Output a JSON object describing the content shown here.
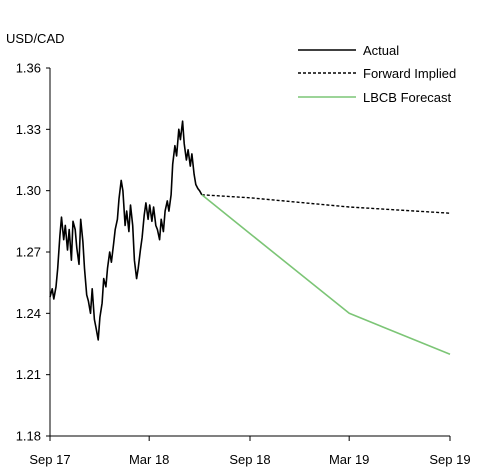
{
  "chart_data": {
    "type": "line",
    "ylabel": "USD/CAD",
    "ylim": [
      1.18,
      1.36
    ],
    "yticks": [
      "1.18",
      "1.21",
      "1.24",
      "1.27",
      "1.30",
      "1.33",
      "1.36"
    ],
    "x_tick_labels": [
      "Sep 17",
      "Mar 18",
      "Sep 18",
      "Mar 19",
      "Sep 19"
    ],
    "x_tick_dates": [
      "2017-09-01",
      "2018-03-01",
      "2018-09-01",
      "2019-03-01",
      "2019-09-01"
    ],
    "xlim": [
      "2017-09-01",
      "2019-09-01"
    ],
    "legend_position": "top-right",
    "series": [
      {
        "name": "Actual",
        "color": "#000000",
        "style": "solid",
        "points": [
          [
            "2017-09-01",
            1.248
          ],
          [
            "2017-09-05",
            1.252
          ],
          [
            "2017-09-08",
            1.247
          ],
          [
            "2017-09-12",
            1.253
          ],
          [
            "2017-09-15",
            1.262
          ],
          [
            "2017-09-19",
            1.278
          ],
          [
            "2017-09-22",
            1.287
          ],
          [
            "2017-09-26",
            1.276
          ],
          [
            "2017-09-29",
            1.283
          ],
          [
            "2017-10-03",
            1.271
          ],
          [
            "2017-10-06",
            1.281
          ],
          [
            "2017-10-10",
            1.266
          ],
          [
            "2017-10-13",
            1.285
          ],
          [
            "2017-10-17",
            1.281
          ],
          [
            "2017-10-20",
            1.272
          ],
          [
            "2017-10-24",
            1.264
          ],
          [
            "2017-10-27",
            1.286
          ],
          [
            "2017-10-31",
            1.275
          ],
          [
            "2017-11-03",
            1.262
          ],
          [
            "2017-11-07",
            1.249
          ],
          [
            "2017-11-10",
            1.246
          ],
          [
            "2017-11-14",
            1.24
          ],
          [
            "2017-11-17",
            1.252
          ],
          [
            "2017-11-21",
            1.237
          ],
          [
            "2017-11-24",
            1.233
          ],
          [
            "2017-11-28",
            1.227
          ],
          [
            "2017-12-01",
            1.238
          ],
          [
            "2017-12-05",
            1.245
          ],
          [
            "2017-12-08",
            1.257
          ],
          [
            "2017-12-12",
            1.253
          ],
          [
            "2017-12-15",
            1.262
          ],
          [
            "2017-12-19",
            1.27
          ],
          [
            "2017-12-22",
            1.265
          ],
          [
            "2017-12-26",
            1.274
          ],
          [
            "2017-12-29",
            1.281
          ],
          [
            "2018-01-02",
            1.286
          ],
          [
            "2018-01-05",
            1.296
          ],
          [
            "2018-01-09",
            1.305
          ],
          [
            "2018-01-12",
            1.3
          ],
          [
            "2018-01-16",
            1.283
          ],
          [
            "2018-01-19",
            1.29
          ],
          [
            "2018-01-23",
            1.28
          ],
          [
            "2018-01-26",
            1.293
          ],
          [
            "2018-01-30",
            1.283
          ],
          [
            "2018-02-02",
            1.266
          ],
          [
            "2018-02-06",
            1.257
          ],
          [
            "2018-02-09",
            1.262
          ],
          [
            "2018-02-13",
            1.271
          ],
          [
            "2018-02-16",
            1.277
          ],
          [
            "2018-02-20",
            1.288
          ],
          [
            "2018-02-23",
            1.294
          ],
          [
            "2018-02-27",
            1.286
          ],
          [
            "2018-03-02",
            1.293
          ],
          [
            "2018-03-06",
            1.285
          ],
          [
            "2018-03-09",
            1.292
          ],
          [
            "2018-03-13",
            1.283
          ],
          [
            "2018-03-16",
            1.281
          ],
          [
            "2018-03-20",
            1.276
          ],
          [
            "2018-03-23",
            1.286
          ],
          [
            "2018-03-27",
            1.28
          ],
          [
            "2018-03-30",
            1.29
          ],
          [
            "2018-04-03",
            1.295
          ],
          [
            "2018-04-06",
            1.29
          ],
          [
            "2018-04-10",
            1.298
          ],
          [
            "2018-04-13",
            1.313
          ],
          [
            "2018-04-17",
            1.322
          ],
          [
            "2018-04-20",
            1.317
          ],
          [
            "2018-04-24",
            1.33
          ],
          [
            "2018-04-27",
            1.325
          ],
          [
            "2018-05-01",
            1.334
          ],
          [
            "2018-05-04",
            1.323
          ],
          [
            "2018-05-08",
            1.315
          ],
          [
            "2018-05-11",
            1.32
          ],
          [
            "2018-05-15",
            1.312
          ],
          [
            "2018-05-18",
            1.318
          ],
          [
            "2018-05-22",
            1.308
          ],
          [
            "2018-05-25",
            1.303
          ],
          [
            "2018-05-29",
            1.301
          ],
          [
            "2018-06-01",
            1.3
          ],
          [
            "2018-06-05",
            1.298
          ]
        ]
      },
      {
        "name": "Forward Implied",
        "color": "#000000",
        "style": "dashed",
        "points": [
          [
            "2018-06-05",
            1.298
          ],
          [
            "2018-09-01",
            1.2965
          ],
          [
            "2019-03-01",
            1.292
          ],
          [
            "2019-09-01",
            1.289
          ]
        ]
      },
      {
        "name": "LBCB Forecast",
        "color": "#7cc576",
        "style": "solid",
        "points": [
          [
            "2018-06-05",
            1.298
          ],
          [
            "2018-09-01",
            1.279
          ],
          [
            "2019-03-01",
            1.24
          ],
          [
            "2019-09-01",
            1.22
          ]
        ]
      }
    ]
  }
}
